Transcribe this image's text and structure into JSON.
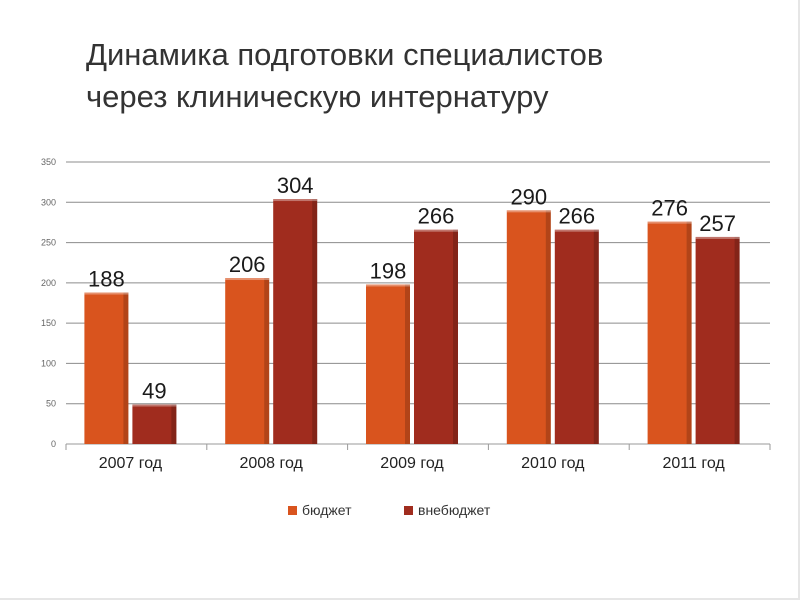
{
  "slide": {
    "title_line1": "Динамика подготовки специалистов",
    "title_line2": "через клиническую интернатуру"
  },
  "colors": {
    "budget": "#d9541e",
    "extra_budget": "#a02c1e",
    "grid": "#8c8c8c"
  },
  "chart_data": {
    "type": "bar",
    "title": "",
    "xlabel": "",
    "ylabel": "",
    "categories": [
      "2007 год",
      "2008 год",
      "2009 год",
      "2010 год",
      "2011 год"
    ],
    "series": [
      {
        "name": "бюджет",
        "values": [
          188,
          206,
          198,
          290,
          276
        ]
      },
      {
        "name": "внебюджет",
        "values": [
          49,
          304,
          266,
          266,
          257
        ]
      }
    ],
    "ylim": [
      0,
      350
    ],
    "yticks": [
      0,
      50,
      100,
      150,
      200,
      250,
      300,
      350
    ],
    "grid": true,
    "legend_position": "bottom"
  }
}
